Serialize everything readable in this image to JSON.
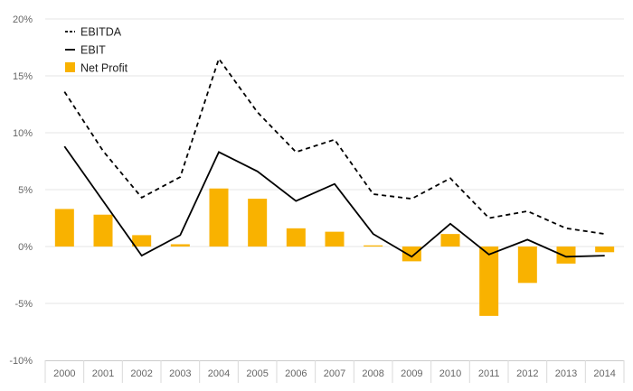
{
  "chart_data": {
    "type": "bar",
    "categories": [
      "2000",
      "2001",
      "2002",
      "2003",
      "2004",
      "2005",
      "2006",
      "2007",
      "2008",
      "2009",
      "2010",
      "2011",
      "2012",
      "2013",
      "2014"
    ],
    "ylim": [
      -10,
      20
    ],
    "yticks": [
      20,
      15,
      10,
      5,
      0,
      -5,
      -10
    ],
    "ytick_labels": [
      "20%",
      "15%",
      "10%",
      "5%",
      "0%",
      "-5%",
      "-10%"
    ],
    "grid": true,
    "legend_position": "top-left",
    "series": [
      {
        "name": "EBITDA",
        "kind": "line",
        "style": "dashed",
        "color": "#000000",
        "values": [
          13.6,
          8.4,
          4.3,
          6.1,
          16.5,
          11.8,
          8.3,
          9.4,
          4.6,
          4.2,
          6.0,
          2.5,
          3.1,
          1.6,
          1.1
        ]
      },
      {
        "name": "EBIT",
        "kind": "line",
        "style": "solid",
        "color": "#000000",
        "values": [
          8.8,
          4.0,
          -0.8,
          1.0,
          8.3,
          6.6,
          4.0,
          5.5,
          1.1,
          -0.9,
          2.0,
          -0.7,
          0.6,
          -0.9,
          -0.8
        ]
      },
      {
        "name": "Net Profit",
        "kind": "bar",
        "color": "#F9B200",
        "values": [
          3.3,
          2.8,
          1.0,
          0.2,
          5.1,
          4.2,
          1.6,
          1.3,
          0.1,
          -1.3,
          1.1,
          -6.1,
          -3.2,
          -1.5,
          -0.5
        ]
      }
    ]
  }
}
